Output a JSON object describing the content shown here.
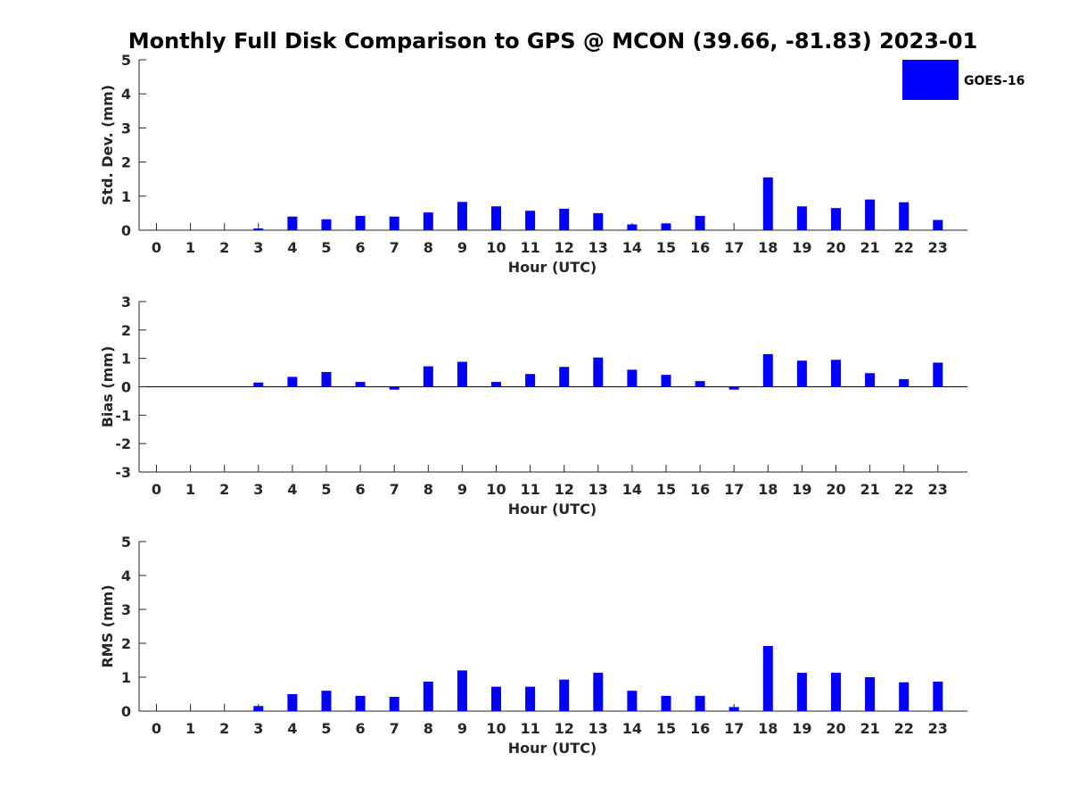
{
  "figure": {
    "title": "Monthly Full Disk Comparison to GPS @ MCON (39.66, -81.83) 2023-01",
    "legend": {
      "label": "GOES-16",
      "color": "#0000ff",
      "placement": "top-right"
    }
  },
  "chart_data": [
    {
      "type": "bar",
      "ylabel": "Std. Dev. (mm)",
      "xlabel": "Hour (UTC)",
      "ylim": [
        0,
        5
      ],
      "yticks": [
        "0",
        "1",
        "2",
        "3",
        "4",
        "5"
      ],
      "categories": [
        "0",
        "1",
        "2",
        "3",
        "4",
        "5",
        "6",
        "7",
        "8",
        "9",
        "10",
        "11",
        "12",
        "13",
        "14",
        "15",
        "16",
        "17",
        "18",
        "19",
        "20",
        "21",
        "22",
        "23"
      ],
      "series": [
        {
          "name": "GOES-16",
          "color": "#0000ff",
          "values": [
            null,
            null,
            null,
            0.05,
            0.4,
            0.32,
            0.42,
            0.4,
            0.52,
            0.83,
            0.7,
            0.57,
            0.63,
            0.5,
            0.17,
            0.2,
            0.42,
            null,
            1.55,
            0.7,
            0.65,
            0.9,
            0.82,
            0.3
          ]
        }
      ]
    },
    {
      "type": "bar",
      "ylabel": "Bias (mm)",
      "xlabel": "Hour (UTC)",
      "ylim": [
        -3,
        3
      ],
      "yticks": [
        "-3",
        "-2",
        "-1",
        "0",
        "1",
        "2",
        "3"
      ],
      "categories": [
        "0",
        "1",
        "2",
        "3",
        "4",
        "5",
        "6",
        "7",
        "8",
        "9",
        "10",
        "11",
        "12",
        "13",
        "14",
        "15",
        "16",
        "17",
        "18",
        "19",
        "20",
        "21",
        "22",
        "23"
      ],
      "series": [
        {
          "name": "GOES-16",
          "color": "#0000ff",
          "values": [
            null,
            null,
            null,
            0.15,
            0.35,
            0.52,
            0.17,
            -0.1,
            0.72,
            0.88,
            0.17,
            0.45,
            0.7,
            1.03,
            0.6,
            0.42,
            0.2,
            -0.1,
            1.15,
            0.92,
            0.95,
            0.48,
            0.27,
            0.85
          ]
        }
      ]
    },
    {
      "type": "bar",
      "ylabel": "RMS (mm)",
      "xlabel": "Hour (UTC)",
      "ylim": [
        0,
        5
      ],
      "yticks": [
        "0",
        "1",
        "2",
        "3",
        "4",
        "5"
      ],
      "categories": [
        "0",
        "1",
        "2",
        "3",
        "4",
        "5",
        "6",
        "7",
        "8",
        "9",
        "10",
        "11",
        "12",
        "13",
        "14",
        "15",
        "16",
        "17",
        "18",
        "19",
        "20",
        "21",
        "22",
        "23"
      ],
      "series": [
        {
          "name": "GOES-16",
          "color": "#0000ff",
          "values": [
            null,
            null,
            null,
            0.15,
            0.5,
            0.6,
            0.45,
            0.42,
            0.87,
            1.2,
            0.72,
            0.72,
            0.93,
            1.13,
            0.6,
            0.45,
            0.45,
            0.12,
            1.92,
            1.13,
            1.13,
            1.0,
            0.85,
            0.87
          ]
        }
      ]
    }
  ]
}
